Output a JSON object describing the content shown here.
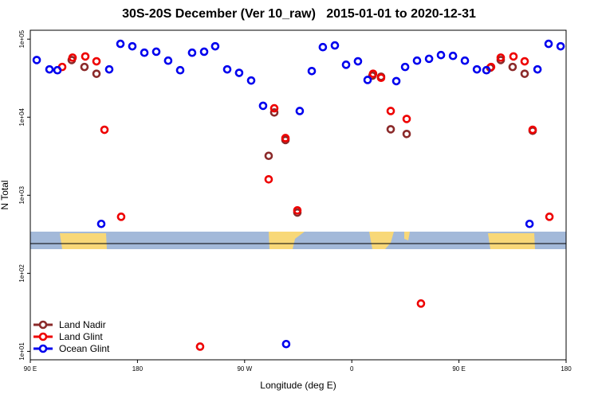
{
  "chart_data": {
    "type": "scatter",
    "title": "30S-20S December (Ver 10_raw)   2015-01-01 to 2020-12-31",
    "x_label": "Longitude (deg E)",
    "y_label": "N Total",
    "log_y": true,
    "legend": "lower left",
    "xlim": [
      90,
      540
    ],
    "xticks": [
      {
        "value": 90,
        "label": "90 E"
      },
      {
        "value": 180,
        "label": "180"
      },
      {
        "value": 270,
        "label": "90 W"
      },
      {
        "value": 360,
        "label": "0"
      },
      {
        "value": 450,
        "label": "90 E"
      },
      {
        "value": 540,
        "label": "180"
      }
    ],
    "ylim": [
      7.8,
      130000
    ],
    "yticks": [
      {
        "value": 10,
        "label": "1e+01"
      },
      {
        "value": 100,
        "label": "1e+02"
      },
      {
        "value": 1000,
        "label": "1e+03"
      },
      {
        "value": 10000,
        "label": "1e+04"
      },
      {
        "value": 100000,
        "label": "1e+05"
      }
    ],
    "series": [
      {
        "name": "Land Nadir",
        "color": "#8b2a2a",
        "x": [
          124.8,
          135.5,
          145.6,
          290.2,
          294.9,
          304.3,
          314.3,
          377.3,
          384.6,
          392.7,
          406.1,
          476.3,
          485.1,
          495.1,
          505.2,
          511.9
        ],
        "values": [
          54000,
          44000,
          36000,
          3200,
          11500,
          5100,
          600,
          34000,
          33000,
          7000,
          6100,
          43000,
          54000,
          44000,
          36000,
          6700
        ]
      },
      {
        "name": "Land Glint",
        "color": "#ee0000",
        "x": [
          116.8,
          125.5,
          136.2,
          145.6,
          152.3,
          166.3,
          232.6,
          290.2,
          294.9,
          304.3,
          314.3,
          377.9,
          384.6,
          392.7,
          406.1,
          418.1,
          477.0,
          485.1,
          495.8,
          505.2,
          511.9,
          526.0
        ],
        "values": [
          44000,
          58000,
          60000,
          52000,
          6900,
          530,
          11.5,
          1600,
          13000,
          5400,
          640,
          36000,
          32000,
          12000,
          9500,
          41,
          44000,
          58000,
          60000,
          52000,
          6900,
          530
        ]
      },
      {
        "name": "Ocean Glint",
        "color": "#0000ee",
        "x": [
          95.4,
          106.1,
          112.8,
          149.6,
          156.3,
          165.7,
          175.7,
          185.8,
          195.8,
          205.8,
          215.9,
          225.9,
          236.0,
          245.3,
          255.4,
          265.4,
          275.5,
          285.5,
          304.9,
          316.3,
          326.4,
          335.7,
          345.8,
          355.2,
          365.2,
          373.3,
          397.4,
          404.8,
          414.8,
          424.9,
          434.9,
          445.0,
          455.0,
          465.1,
          473.1,
          509.3,
          516.0,
          525.3,
          535.4
        ],
        "values": [
          54000,
          41000,
          40000,
          430,
          41000,
          87000,
          81000,
          67000,
          69000,
          53000,
          40000,
          67000,
          69000,
          81000,
          41000,
          37000,
          29500,
          14000,
          12.4,
          12000,
          39000,
          79000,
          83000,
          47000,
          52000,
          30000,
          29000,
          44000,
          53000,
          56000,
          62500,
          61000,
          53000,
          41000,
          40000,
          430,
          41000,
          87000,
          81000
        ]
      }
    ]
  }
}
